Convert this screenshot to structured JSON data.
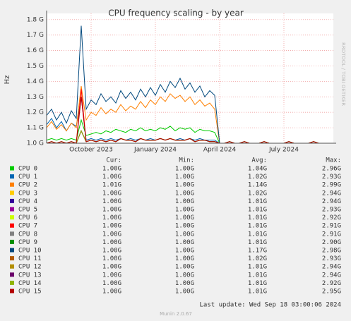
{
  "chart_data": {
    "type": "line",
    "title": "CPU frequency scaling - by year",
    "y_label": "Hz",
    "side_label": "RRDTOOL / TOBI OETIKER",
    "columns": [
      "Cur:",
      "Min:",
      "Avg:",
      "Max:"
    ],
    "last_update": "Last update: Wed Sep 18 03:00:06 2024",
    "footer": "Munin 2.0.67",
    "grid": true,
    "ylim": [
      1.0,
      1.84
    ],
    "yticks": [
      {
        "value": 1.0,
        "label": "1.0 G"
      },
      {
        "value": 1.1,
        "label": "1.1 G"
      },
      {
        "value": 1.2,
        "label": "1.2 G"
      },
      {
        "value": 1.3,
        "label": "1.3 G"
      },
      {
        "value": 1.4,
        "label": "1.4 G"
      },
      {
        "value": 1.5,
        "label": "1.5 G"
      },
      {
        "value": 1.6,
        "label": "1.6 G"
      },
      {
        "value": 1.7,
        "label": "1.7 G"
      },
      {
        "value": 1.8,
        "label": "1.8 G"
      }
    ],
    "categories": [
      null,
      null,
      null,
      null,
      null,
      null,
      null,
      null,
      null,
      "October 2023",
      null,
      null,
      null,
      null,
      null,
      null,
      null,
      null,
      null,
      null,
      null,
      null,
      "January 2024",
      null,
      null,
      null,
      null,
      null,
      null,
      null,
      null,
      null,
      null,
      null,
      null,
      "April 2024",
      null,
      null,
      null,
      null,
      null,
      null,
      null,
      null,
      null,
      null,
      null,
      null,
      "July 2024",
      null,
      null,
      null,
      null,
      null,
      null,
      null,
      null,
      null
    ],
    "series": [
      {
        "name": "CPU 0",
        "color": "#00CC00",
        "cur": "1.00G",
        "min": "1.00G",
        "avg": "1.04G",
        "max": "2.96G",
        "values": [
          1.02,
          1.03,
          1.02,
          1.03,
          1.02,
          1.03,
          1.02,
          1.15,
          1.05,
          1.06,
          1.07,
          1.06,
          1.08,
          1.07,
          1.09,
          1.08,
          1.07,
          1.09,
          1.08,
          1.1,
          1.08,
          1.09,
          1.08,
          1.1,
          1.09,
          1.11,
          1.08,
          1.1,
          1.09,
          1.1,
          1.07,
          1.09,
          1.08,
          1.08,
          1.07,
          1.0,
          1.0,
          1.01,
          1.0,
          1.0,
          1.01,
          1.0,
          1.0,
          1.0,
          1.01,
          1.0,
          1.0,
          1.0,
          1.0,
          1.01,
          1.0,
          1.0,
          1.0,
          1.0,
          1.01,
          1.0,
          1.0,
          1.0
        ]
      },
      {
        "name": "CPU 1",
        "color": "#0066B3",
        "cur": "1.00G",
        "min": "1.00G",
        "avg": "1.02G",
        "max": "2.93G",
        "values": [
          1.12,
          1.16,
          1.1,
          1.14,
          1.08,
          1.13,
          1.11,
          1.3,
          1.02,
          1.03,
          1.02,
          1.03,
          1.02,
          1.03,
          1.02,
          1.03,
          1.02,
          1.03,
          1.02,
          1.03,
          1.02,
          1.03,
          1.02,
          1.03,
          1.02,
          1.03,
          1.02,
          1.03,
          1.02,
          1.03,
          1.02,
          1.03,
          1.02,
          1.02,
          1.02,
          1.0,
          1.0,
          1.01,
          1.0,
          1.0,
          1.01,
          1.0,
          1.0,
          1.0,
          1.01,
          1.0,
          1.0,
          1.0,
          1.0,
          1.01,
          1.0,
          1.0,
          1.0,
          1.0,
          1.01,
          1.0,
          1.0,
          1.0
        ]
      },
      {
        "name": "CPU 2",
        "color": "#FF8000",
        "cur": "1.01G",
        "min": "1.00G",
        "avg": "1.14G",
        "max": "2.99G",
        "values": [
          1.1,
          1.14,
          1.09,
          1.12,
          1.08,
          1.13,
          1.1,
          1.37,
          1.15,
          1.2,
          1.18,
          1.23,
          1.19,
          1.22,
          1.2,
          1.25,
          1.21,
          1.24,
          1.22,
          1.27,
          1.23,
          1.28,
          1.25,
          1.3,
          1.27,
          1.32,
          1.29,
          1.31,
          1.27,
          1.3,
          1.25,
          1.28,
          1.24,
          1.26,
          1.22,
          1.0,
          1.0,
          1.01,
          1.0,
          1.0,
          1.01,
          1.0,
          1.0,
          1.0,
          1.01,
          1.0,
          1.0,
          1.0,
          1.0,
          1.01,
          1.0,
          1.0,
          1.0,
          1.0,
          1.01,
          1.0,
          1.0,
          1.0
        ]
      },
      {
        "name": "CPU 3",
        "color": "#FFCC00",
        "cur": "1.00G",
        "min": "1.00G",
        "avg": "1.02G",
        "max": "2.94G",
        "values": [
          1.0,
          1.01,
          1.0,
          1.01,
          1.0,
          1.01,
          1.0,
          1.08,
          1.01,
          1.02,
          1.01,
          1.02,
          1.01,
          1.02,
          1.01,
          1.03,
          1.02,
          1.02,
          1.01,
          1.03,
          1.02,
          1.02,
          1.02,
          1.03,
          1.02,
          1.03,
          1.02,
          1.02,
          1.02,
          1.03,
          1.01,
          1.02,
          1.02,
          1.01,
          1.01,
          1.0,
          1.0,
          1.01,
          1.0,
          1.0,
          1.01,
          1.0,
          1.0,
          1.0,
          1.01,
          1.0,
          1.0,
          1.0,
          1.0,
          1.01,
          1.0,
          1.0,
          1.0,
          1.0,
          1.01,
          1.0,
          1.0,
          1.0
        ]
      },
      {
        "name": "CPU 4",
        "color": "#330099",
        "cur": "1.00G",
        "min": "1.00G",
        "avg": "1.01G",
        "max": "2.94G",
        "values": [
          1.0,
          1.01,
          1.0,
          1.01,
          1.0,
          1.01,
          1.0,
          1.08,
          1.01,
          1.02,
          1.01,
          1.02,
          1.01,
          1.02,
          1.01,
          1.03,
          1.02,
          1.02,
          1.01,
          1.03,
          1.02,
          1.02,
          1.02,
          1.03,
          1.02,
          1.03,
          1.02,
          1.02,
          1.02,
          1.03,
          1.01,
          1.02,
          1.02,
          1.01,
          1.01,
          1.0,
          1.0,
          1.01,
          1.0,
          1.0,
          1.01,
          1.0,
          1.0,
          1.0,
          1.01,
          1.0,
          1.0,
          1.0,
          1.0,
          1.01,
          1.0,
          1.0,
          1.0,
          1.0,
          1.01,
          1.0,
          1.0,
          1.0
        ]
      },
      {
        "name": "CPU 5",
        "color": "#990099",
        "cur": "1.00G",
        "min": "1.00G",
        "avg": "1.01G",
        "max": "2.93G",
        "values": [
          1.0,
          1.01,
          1.0,
          1.01,
          1.0,
          1.01,
          1.0,
          1.08,
          1.01,
          1.02,
          1.01,
          1.02,
          1.01,
          1.02,
          1.01,
          1.03,
          1.02,
          1.02,
          1.01,
          1.03,
          1.02,
          1.02,
          1.02,
          1.03,
          1.02,
          1.03,
          1.02,
          1.02,
          1.02,
          1.03,
          1.01,
          1.02,
          1.02,
          1.01,
          1.01,
          1.0,
          1.0,
          1.01,
          1.0,
          1.0,
          1.01,
          1.0,
          1.0,
          1.0,
          1.01,
          1.0,
          1.0,
          1.0,
          1.0,
          1.01,
          1.0,
          1.0,
          1.0,
          1.0,
          1.01,
          1.0,
          1.0,
          1.0
        ]
      },
      {
        "name": "CPU 6",
        "color": "#CCFF00",
        "cur": "1.00G",
        "min": "1.00G",
        "avg": "1.01G",
        "max": "2.92G",
        "values": [
          1.0,
          1.01,
          1.0,
          1.01,
          1.0,
          1.01,
          1.0,
          1.08,
          1.01,
          1.02,
          1.01,
          1.02,
          1.01,
          1.02,
          1.01,
          1.03,
          1.02,
          1.02,
          1.01,
          1.03,
          1.02,
          1.02,
          1.02,
          1.03,
          1.02,
          1.03,
          1.02,
          1.02,
          1.02,
          1.03,
          1.01,
          1.02,
          1.02,
          1.01,
          1.01,
          1.0,
          1.0,
          1.01,
          1.0,
          1.0,
          1.01,
          1.0,
          1.0,
          1.0,
          1.01,
          1.0,
          1.0,
          1.0,
          1.0,
          1.01,
          1.0,
          1.0,
          1.0,
          1.0,
          1.01,
          1.0,
          1.0,
          1.0
        ]
      },
      {
        "name": "CPU 7",
        "color": "#FF0000",
        "cur": "1.00G",
        "min": "1.00G",
        "avg": "1.01G",
        "max": "2.91G",
        "values": [
          1.0,
          1.01,
          1.0,
          1.01,
          1.0,
          1.01,
          1.0,
          1.35,
          1.01,
          1.02,
          1.01,
          1.02,
          1.01,
          1.02,
          1.01,
          1.03,
          1.02,
          1.02,
          1.01,
          1.03,
          1.02,
          1.02,
          1.02,
          1.03,
          1.02,
          1.03,
          1.02,
          1.02,
          1.02,
          1.03,
          1.01,
          1.02,
          1.02,
          1.01,
          1.01,
          1.0,
          1.0,
          1.01,
          1.0,
          1.0,
          1.01,
          1.0,
          1.0,
          1.0,
          1.01,
          1.0,
          1.0,
          1.0,
          1.0,
          1.01,
          1.0,
          1.0,
          1.0,
          1.0,
          1.01,
          1.0,
          1.0,
          1.0
        ]
      },
      {
        "name": "CPU 8",
        "color": "#808080",
        "cur": "1.00G",
        "min": "1.00G",
        "avg": "1.01G",
        "max": "2.91G",
        "values": [
          1.0,
          1.01,
          1.0,
          1.01,
          1.0,
          1.01,
          1.0,
          1.08,
          1.01,
          1.02,
          1.01,
          1.02,
          1.01,
          1.02,
          1.01,
          1.03,
          1.02,
          1.02,
          1.01,
          1.03,
          1.02,
          1.02,
          1.02,
          1.03,
          1.02,
          1.03,
          1.02,
          1.02,
          1.02,
          1.03,
          1.01,
          1.02,
          1.02,
          1.01,
          1.01,
          1.0,
          1.0,
          1.01,
          1.0,
          1.0,
          1.01,
          1.0,
          1.0,
          1.0,
          1.01,
          1.0,
          1.0,
          1.0,
          1.0,
          1.01,
          1.0,
          1.0,
          1.0,
          1.0,
          1.01,
          1.0,
          1.0,
          1.0
        ]
      },
      {
        "name": "CPU 9",
        "color": "#008F00",
        "cur": "1.00G",
        "min": "1.00G",
        "avg": "1.01G",
        "max": "2.90G",
        "values": [
          1.0,
          1.01,
          1.0,
          1.01,
          1.0,
          1.01,
          1.0,
          1.08,
          1.01,
          1.02,
          1.01,
          1.02,
          1.01,
          1.02,
          1.01,
          1.03,
          1.02,
          1.02,
          1.01,
          1.03,
          1.02,
          1.02,
          1.02,
          1.03,
          1.02,
          1.03,
          1.02,
          1.02,
          1.02,
          1.03,
          1.01,
          1.02,
          1.02,
          1.01,
          1.01,
          1.0,
          1.0,
          1.01,
          1.0,
          1.0,
          1.01,
          1.0,
          1.0,
          1.0,
          1.01,
          1.0,
          1.0,
          1.0,
          1.0,
          1.01,
          1.0,
          1.0,
          1.0,
          1.0,
          1.01,
          1.0,
          1.0,
          1.0
        ]
      },
      {
        "name": "CPU 10",
        "color": "#00487D",
        "cur": "1.00G",
        "min": "1.00G",
        "avg": "1.17G",
        "max": "2.98G",
        "values": [
          1.18,
          1.22,
          1.15,
          1.2,
          1.13,
          1.21,
          1.16,
          1.76,
          1.22,
          1.28,
          1.25,
          1.32,
          1.27,
          1.3,
          1.26,
          1.34,
          1.29,
          1.33,
          1.28,
          1.35,
          1.3,
          1.36,
          1.31,
          1.38,
          1.33,
          1.4,
          1.36,
          1.42,
          1.35,
          1.39,
          1.33,
          1.37,
          1.3,
          1.34,
          1.31,
          1.0,
          1.0,
          1.01,
          1.0,
          1.0,
          1.01,
          1.0,
          1.0,
          1.0,
          1.01,
          1.0,
          1.0,
          1.0,
          1.0,
          1.01,
          1.0,
          1.0,
          1.0,
          1.0,
          1.01,
          1.0,
          1.0,
          1.0
        ]
      },
      {
        "name": "CPU 11",
        "color": "#B35A00",
        "cur": "1.00G",
        "min": "1.00G",
        "avg": "1.02G",
        "max": "2.93G",
        "values": [
          1.0,
          1.01,
          1.0,
          1.01,
          1.0,
          1.01,
          1.0,
          1.08,
          1.01,
          1.02,
          1.01,
          1.02,
          1.01,
          1.02,
          1.01,
          1.03,
          1.02,
          1.02,
          1.01,
          1.03,
          1.02,
          1.02,
          1.02,
          1.03,
          1.02,
          1.03,
          1.02,
          1.02,
          1.02,
          1.03,
          1.01,
          1.02,
          1.02,
          1.01,
          1.01,
          1.0,
          1.0,
          1.01,
          1.0,
          1.0,
          1.01,
          1.0,
          1.0,
          1.0,
          1.01,
          1.0,
          1.0,
          1.0,
          1.0,
          1.01,
          1.0,
          1.0,
          1.0,
          1.0,
          1.01,
          1.0,
          1.0,
          1.0
        ]
      },
      {
        "name": "CPU 12",
        "color": "#B38F00",
        "cur": "1.00G",
        "min": "1.00G",
        "avg": "1.01G",
        "max": "2.94G",
        "values": [
          1.0,
          1.01,
          1.0,
          1.01,
          1.0,
          1.01,
          1.0,
          1.08,
          1.01,
          1.02,
          1.01,
          1.02,
          1.01,
          1.02,
          1.01,
          1.03,
          1.02,
          1.02,
          1.01,
          1.03,
          1.02,
          1.02,
          1.02,
          1.03,
          1.02,
          1.03,
          1.02,
          1.02,
          1.02,
          1.03,
          1.01,
          1.02,
          1.02,
          1.01,
          1.01,
          1.0,
          1.0,
          1.01,
          1.0,
          1.0,
          1.01,
          1.0,
          1.0,
          1.0,
          1.01,
          1.0,
          1.0,
          1.0,
          1.0,
          1.01,
          1.0,
          1.0,
          1.0,
          1.0,
          1.01,
          1.0,
          1.0,
          1.0
        ]
      },
      {
        "name": "CPU 13",
        "color": "#6B006B",
        "cur": "1.00G",
        "min": "1.00G",
        "avg": "1.01G",
        "max": "2.94G",
        "values": [
          1.0,
          1.01,
          1.0,
          1.01,
          1.0,
          1.01,
          1.0,
          1.08,
          1.01,
          1.02,
          1.01,
          1.02,
          1.01,
          1.02,
          1.01,
          1.03,
          1.02,
          1.02,
          1.01,
          1.03,
          1.02,
          1.02,
          1.02,
          1.03,
          1.02,
          1.03,
          1.02,
          1.02,
          1.02,
          1.03,
          1.01,
          1.02,
          1.02,
          1.01,
          1.01,
          1.0,
          1.0,
          1.01,
          1.0,
          1.0,
          1.01,
          1.0,
          1.0,
          1.0,
          1.01,
          1.0,
          1.0,
          1.0,
          1.0,
          1.01,
          1.0,
          1.0,
          1.0,
          1.0,
          1.01,
          1.0,
          1.0,
          1.0
        ]
      },
      {
        "name": "CPU 14",
        "color": "#8FB300",
        "cur": "1.00G",
        "min": "1.00G",
        "avg": "1.01G",
        "max": "2.92G",
        "values": [
          1.0,
          1.01,
          1.0,
          1.01,
          1.0,
          1.01,
          1.0,
          1.08,
          1.01,
          1.02,
          1.01,
          1.02,
          1.01,
          1.02,
          1.01,
          1.03,
          1.02,
          1.02,
          1.01,
          1.03,
          1.02,
          1.02,
          1.02,
          1.03,
          1.02,
          1.03,
          1.02,
          1.02,
          1.02,
          1.03,
          1.01,
          1.02,
          1.02,
          1.01,
          1.01,
          1.0,
          1.0,
          1.01,
          1.0,
          1.0,
          1.01,
          1.0,
          1.0,
          1.0,
          1.01,
          1.0,
          1.0,
          1.0,
          1.0,
          1.01,
          1.0,
          1.0,
          1.0,
          1.0,
          1.01,
          1.0,
          1.0,
          1.0
        ]
      },
      {
        "name": "CPU 15",
        "color": "#B30000",
        "cur": "1.00G",
        "min": "1.00G",
        "avg": "1.01G",
        "max": "2.95G",
        "values": [
          1.0,
          1.01,
          1.0,
          1.01,
          1.0,
          1.01,
          1.0,
          1.3,
          1.01,
          1.02,
          1.01,
          1.02,
          1.01,
          1.02,
          1.01,
          1.03,
          1.02,
          1.02,
          1.01,
          1.03,
          1.02,
          1.02,
          1.02,
          1.03,
          1.02,
          1.03,
          1.02,
          1.02,
          1.02,
          1.03,
          1.01,
          1.02,
          1.02,
          1.01,
          1.01,
          1.0,
          1.0,
          1.01,
          1.0,
          1.0,
          1.01,
          1.0,
          1.0,
          1.0,
          1.01,
          1.0,
          1.0,
          1.0,
          1.0,
          1.01,
          1.0,
          1.0,
          1.0,
          1.0,
          1.01,
          1.0,
          1.0,
          1.0
        ]
      }
    ]
  }
}
